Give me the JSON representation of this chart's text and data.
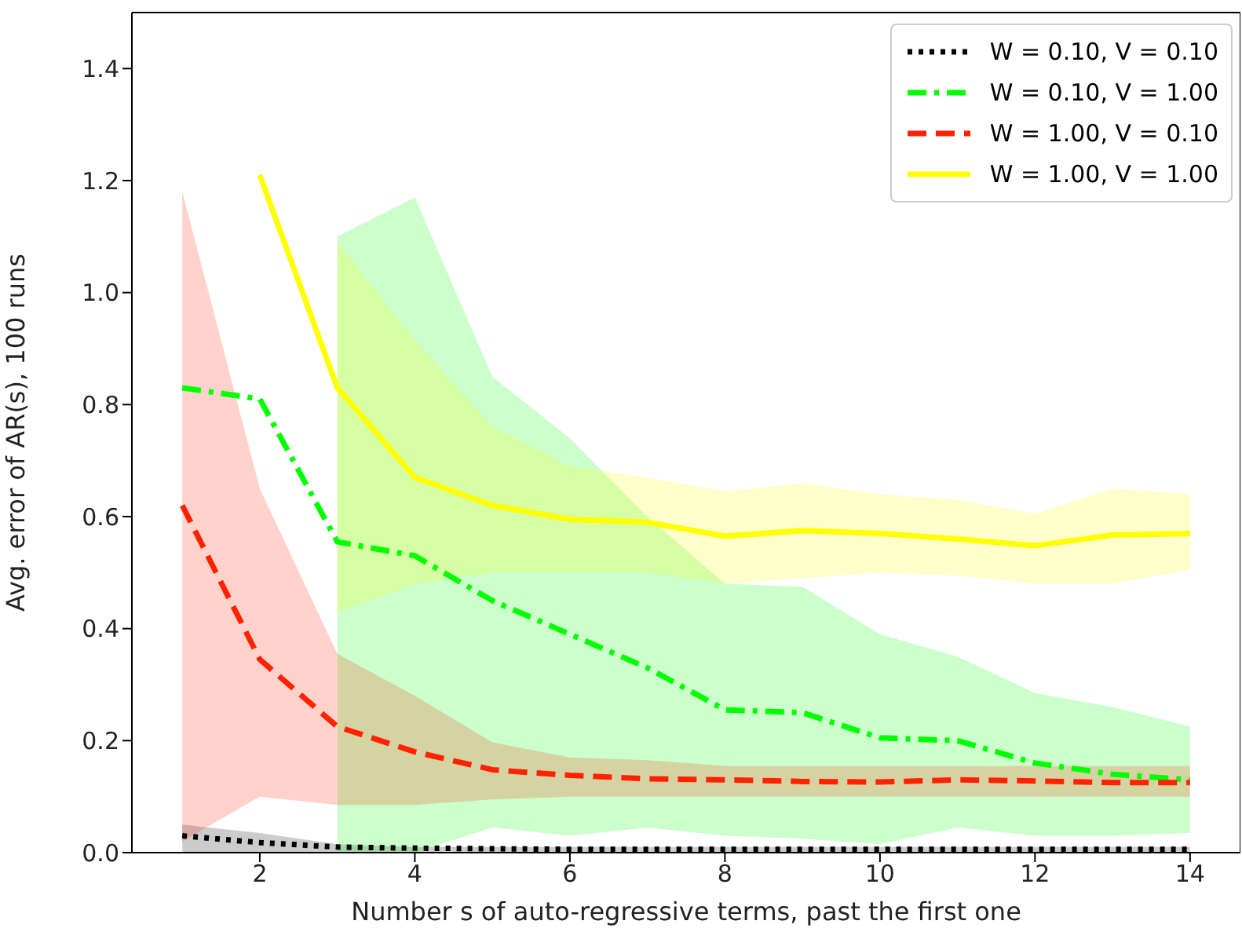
{
  "chart_data": {
    "type": "line",
    "xlabel": "Number s of auto-regressive terms, past the first one",
    "ylabel": "Avg. error of AR(s), 100 runs",
    "x": [
      1,
      2,
      3,
      4,
      5,
      6,
      7,
      8,
      9,
      10,
      11,
      12,
      13,
      14
    ],
    "xlim": [
      0.35,
      14.65
    ],
    "xticks": [
      2,
      4,
      6,
      8,
      10,
      12,
      14
    ],
    "ylim": [
      0,
      1.5
    ],
    "yticks": [
      {
        "value": 0,
        "label": "0.0"
      },
      {
        "value": 0.2,
        "label": "0.2"
      },
      {
        "value": 0.4,
        "label": "0.4"
      },
      {
        "value": 0.6,
        "label": "0.6"
      },
      {
        "value": 0.8,
        "label": "0.8"
      },
      {
        "value": 1,
        "label": "1.0"
      },
      {
        "value": 1.2,
        "label": "1.2"
      },
      {
        "value": 1.4,
        "label": "1.4"
      }
    ],
    "legend": "top right",
    "marker": "none",
    "series": [
      {
        "name": "W = 0.10, V = 0.10",
        "color": "#000000",
        "line_style": "dotted",
        "values": [
          0.03,
          0.018,
          0.01,
          0.008,
          0.007,
          0.006,
          0.006,
          0.006,
          0.006,
          0.006,
          0.006,
          0.006,
          0.006,
          0.006
        ],
        "lower": [
          0,
          0,
          0,
          0,
          0,
          0,
          0,
          0,
          0,
          0,
          0,
          0,
          0,
          0
        ],
        "upper": [
          0.05,
          0.035,
          0.015,
          0.01,
          0.01,
          0.01,
          0.01,
          0.01,
          0.01,
          0.01,
          0.01,
          0.01,
          0.01,
          0.01
        ]
      },
      {
        "name": "W = 0.10, V = 1.00",
        "color": "#00ff00",
        "line_style": "dashdot",
        "values": [
          0.83,
          0.81,
          0.555,
          0.53,
          0.45,
          0.39,
          0.33,
          0.255,
          0.25,
          0.205,
          0.2,
          0.16,
          0.14,
          0.13
        ],
        "lower": [
          null,
          null,
          0,
          0,
          0.045,
          0.03,
          0.045,
          0.03,
          0.025,
          0.015,
          0.045,
          0.03,
          0.03,
          0.035
        ],
        "upper": [
          null,
          null,
          1.1,
          1.17,
          0.85,
          0.74,
          0.6,
          0.48,
          0.475,
          0.39,
          0.35,
          0.285,
          0.26,
          0.225
        ]
      },
      {
        "name": "W = 1.00, V = 0.10",
        "color": "#ff2200",
        "line_style": "dashed",
        "values": [
          0.62,
          0.345,
          0.225,
          0.18,
          0.148,
          0.138,
          0.132,
          0.13,
          0.127,
          0.126,
          0.13,
          0.128,
          0.125,
          0.125
        ],
        "lower": [
          0.02,
          0.1,
          0.085,
          0.085,
          0.095,
          0.1,
          0.1,
          0.1,
          0.1,
          0.1,
          0.1,
          0.1,
          0.1,
          0.1
        ],
        "upper": [
          1.18,
          0.65,
          0.355,
          0.28,
          0.197,
          0.17,
          0.165,
          0.155,
          0.155,
          0.155,
          0.155,
          0.155,
          0.155,
          0.155
        ]
      },
      {
        "name": "W = 1.00, V = 1.00",
        "color": "#ffff00",
        "line_style": "solid",
        "values": [
          null,
          1.21,
          0.83,
          0.67,
          0.62,
          0.595,
          0.59,
          0.565,
          0.575,
          0.57,
          0.56,
          0.548,
          0.567,
          0.57
        ],
        "lower": [
          null,
          null,
          0.43,
          0.48,
          0.5,
          0.5,
          0.5,
          0.48,
          0.49,
          0.5,
          0.495,
          0.48,
          0.48,
          0.505
        ],
        "upper": [
          null,
          null,
          1.09,
          0.915,
          0.76,
          0.69,
          0.67,
          0.645,
          0.66,
          0.64,
          0.63,
          0.605,
          0.65,
          0.64
        ]
      }
    ]
  }
}
